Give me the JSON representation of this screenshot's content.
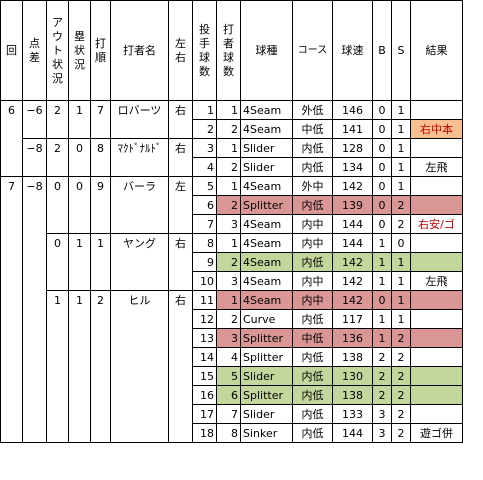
{
  "headers": {
    "inning": "回",
    "score_diff": "点差",
    "outs": "アウト状況",
    "runners": "塁状況",
    "order": "打順",
    "batter": "打者名",
    "hand": "左右",
    "pitch_count": "投手球数",
    "batter_pitch": "打者球数",
    "pitch_type": "球種",
    "course": "コース",
    "speed": "球速",
    "b": "B",
    "s": "S",
    "result": "結果"
  },
  "rows": [
    {
      "inning": "6",
      "diff": "−6",
      "outs": "2",
      "runners": "1",
      "order": "7",
      "batter": "ロバーツ",
      "hand": "右",
      "pc": "1",
      "bp": "1",
      "type": "4Seam",
      "course": "外低",
      "speed": "146",
      "b": "0",
      "s": "1",
      "result": "",
      "hl": ""
    },
    {
      "inning": "",
      "diff": "",
      "outs": "",
      "runners": "",
      "order": "",
      "batter": "",
      "hand": "",
      "pc": "2",
      "bp": "2",
      "type": "4Seam",
      "course": "中低",
      "speed": "141",
      "b": "0",
      "s": "1",
      "result": "右中本",
      "hl": "orange"
    },
    {
      "inning": "",
      "diff": "−8",
      "outs": "2",
      "runners": "0",
      "order": "8",
      "batter": "ﾏｸﾄﾞﾅﾙﾄﾞ",
      "hand": "右",
      "pc": "3",
      "bp": "1",
      "type": "Slider",
      "course": "内低",
      "speed": "128",
      "b": "0",
      "s": "1",
      "result": "",
      "hl": ""
    },
    {
      "inning": "",
      "diff": "",
      "outs": "",
      "runners": "",
      "order": "",
      "batter": "",
      "hand": "",
      "pc": "4",
      "bp": "2",
      "type": "Slider",
      "course": "内低",
      "speed": "134",
      "b": "0",
      "s": "1",
      "result": "左飛",
      "hl": ""
    },
    {
      "inning": "7",
      "diff": "−8",
      "outs": "0",
      "runners": "0",
      "order": "9",
      "batter": "バーラ",
      "hand": "左",
      "pc": "5",
      "bp": "1",
      "type": "4Seam",
      "course": "外中",
      "speed": "142",
      "b": "0",
      "s": "1",
      "result": "",
      "hl": ""
    },
    {
      "inning": "",
      "diff": "",
      "outs": "",
      "runners": "",
      "order": "",
      "batter": "",
      "hand": "",
      "pc": "6",
      "bp": "2",
      "type": "Splitter",
      "course": "内低",
      "speed": "139",
      "b": "0",
      "s": "2",
      "result": "",
      "hl": "red"
    },
    {
      "inning": "",
      "diff": "",
      "outs": "",
      "runners": "",
      "order": "",
      "batter": "",
      "hand": "",
      "pc": "7",
      "bp": "3",
      "type": "4Seam",
      "course": "内中",
      "speed": "144",
      "b": "0",
      "s": "2",
      "result": "右安/ゴ",
      "hl": "redtxt"
    },
    {
      "inning": "",
      "diff": "",
      "outs": "0",
      "runners": "1",
      "order": "1",
      "batter": "ヤング",
      "hand": "右",
      "pc": "8",
      "bp": "1",
      "type": "4Seam",
      "course": "内中",
      "speed": "144",
      "b": "1",
      "s": "0",
      "result": "",
      "hl": ""
    },
    {
      "inning": "",
      "diff": "",
      "outs": "",
      "runners": "",
      "order": "",
      "batter": "",
      "hand": "",
      "pc": "9",
      "bp": "2",
      "type": "4Seam",
      "course": "内低",
      "speed": "142",
      "b": "1",
      "s": "1",
      "result": "",
      "hl": "green"
    },
    {
      "inning": "",
      "diff": "",
      "outs": "",
      "runners": "",
      "order": "",
      "batter": "",
      "hand": "",
      "pc": "10",
      "bp": "3",
      "type": "4Seam",
      "course": "内中",
      "speed": "142",
      "b": "1",
      "s": "1",
      "result": "左飛",
      "hl": ""
    },
    {
      "inning": "",
      "diff": "",
      "outs": "1",
      "runners": "1",
      "order": "2",
      "batter": "ヒル",
      "hand": "右",
      "pc": "11",
      "bp": "1",
      "type": "4Seam",
      "course": "内中",
      "speed": "142",
      "b": "0",
      "s": "1",
      "result": "",
      "hl": "red"
    },
    {
      "inning": "",
      "diff": "",
      "outs": "",
      "runners": "",
      "order": "",
      "batter": "",
      "hand": "",
      "pc": "12",
      "bp": "2",
      "type": "Curve",
      "course": "内低",
      "speed": "117",
      "b": "1",
      "s": "1",
      "result": "",
      "hl": ""
    },
    {
      "inning": "",
      "diff": "",
      "outs": "",
      "runners": "",
      "order": "",
      "batter": "",
      "hand": "",
      "pc": "13",
      "bp": "3",
      "type": "Splitter",
      "course": "中低",
      "speed": "136",
      "b": "1",
      "s": "2",
      "result": "",
      "hl": "red"
    },
    {
      "inning": "",
      "diff": "",
      "outs": "",
      "runners": "",
      "order": "",
      "batter": "",
      "hand": "",
      "pc": "14",
      "bp": "4",
      "type": "Splitter",
      "course": "内低",
      "speed": "138",
      "b": "2",
      "s": "2",
      "result": "",
      "hl": ""
    },
    {
      "inning": "",
      "diff": "",
      "outs": "",
      "runners": "",
      "order": "",
      "batter": "",
      "hand": "",
      "pc": "15",
      "bp": "5",
      "type": "Slider",
      "course": "内低",
      "speed": "130",
      "b": "2",
      "s": "2",
      "result": "",
      "hl": "green"
    },
    {
      "inning": "",
      "diff": "",
      "outs": "",
      "runners": "",
      "order": "",
      "batter": "",
      "hand": "",
      "pc": "16",
      "bp": "6",
      "type": "Splitter",
      "course": "内低",
      "speed": "138",
      "b": "2",
      "s": "2",
      "result": "",
      "hl": "green"
    },
    {
      "inning": "",
      "diff": "",
      "outs": "",
      "runners": "",
      "order": "",
      "batter": "",
      "hand": "",
      "pc": "17",
      "bp": "7",
      "type": "Slider",
      "course": "内低",
      "speed": "133",
      "b": "3",
      "s": "2",
      "result": "",
      "hl": ""
    },
    {
      "inning": "",
      "diff": "",
      "outs": "",
      "runners": "",
      "order": "",
      "batter": "",
      "hand": "",
      "pc": "18",
      "bp": "8",
      "type": "Sinker",
      "course": "内低",
      "speed": "144",
      "b": "3",
      "s": "2",
      "result": "遊ゴ併",
      "hl": ""
    }
  ]
}
